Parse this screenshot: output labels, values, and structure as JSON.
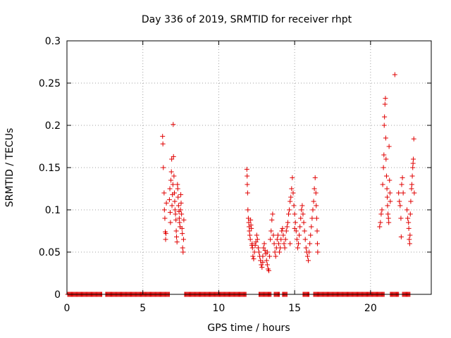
{
  "chart_data": {
    "type": "scatter",
    "title": "Day 336 of 2019, SRMTID for receiver rhpt",
    "xlabel": "GPS time / hours",
    "ylabel": "SRMTID / TECUs",
    "xlim": [
      0,
      24
    ],
    "ylim": [
      0,
      0.3
    ],
    "xticks": [
      0,
      5,
      10,
      15,
      20
    ],
    "yticks": [
      0,
      0.05,
      0.1,
      0.15,
      0.2,
      0.25,
      0.3
    ],
    "ytick_labels": [
      "0",
      "0.05",
      "0.1",
      "0.15",
      "0.2",
      "0.25",
      "0.3"
    ],
    "grid": true,
    "marker": "+",
    "color": "#e00000",
    "zero_intervals": [
      [
        0.05,
        2.3
      ],
      [
        2.55,
        6.75
      ],
      [
        7.75,
        11.8
      ],
      [
        12.65,
        13.45
      ],
      [
        13.65,
        14.0
      ],
      [
        14.2,
        14.5
      ],
      [
        15.55,
        15.95
      ],
      [
        16.25,
        20.9
      ],
      [
        21.3,
        21.85
      ],
      [
        22.1,
        22.6
      ]
    ],
    "series": [
      {
        "name": "SRMTID",
        "points": [
          [
            6.3,
            0.187
          ],
          [
            6.32,
            0.178
          ],
          [
            6.35,
            0.15
          ],
          [
            6.4,
            0.12
          ],
          [
            6.42,
            0.1
          ],
          [
            6.45,
            0.09
          ],
          [
            6.48,
            0.074
          ],
          [
            6.5,
            0.065
          ],
          [
            6.52,
            0.072
          ],
          [
            6.55,
            0.108
          ],
          [
            6.75,
            0.112
          ],
          [
            6.78,
            0.125
          ],
          [
            6.8,
            0.097
          ],
          [
            6.82,
            0.085
          ],
          [
            6.85,
            0.135
          ],
          [
            6.88,
            0.145
          ],
          [
            6.9,
            0.16
          ],
          [
            6.92,
            0.105
          ],
          [
            6.95,
            0.118
          ],
          [
            6.98,
            0.13
          ],
          [
            7.0,
            0.201
          ],
          [
            7.02,
            0.163
          ],
          [
            7.05,
            0.14
          ],
          [
            7.08,
            0.12
          ],
          [
            7.1,
            0.11
          ],
          [
            7.12,
            0.1
          ],
          [
            7.15,
            0.095
          ],
          [
            7.18,
            0.088
          ],
          [
            7.2,
            0.075
          ],
          [
            7.22,
            0.068
          ],
          [
            7.25,
            0.062
          ],
          [
            7.28,
            0.13
          ],
          [
            7.3,
            0.125
          ],
          [
            7.32,
            0.115
          ],
          [
            7.35,
            0.105
          ],
          [
            7.38,
            0.098
          ],
          [
            7.4,
            0.09
          ],
          [
            7.42,
            0.085
          ],
          [
            7.45,
            0.08
          ],
          [
            7.48,
            0.1
          ],
          [
            7.5,
            0.118
          ],
          [
            7.52,
            0.108
          ],
          [
            7.55,
            0.095
          ],
          [
            7.58,
            0.078
          ],
          [
            7.6,
            0.072
          ],
          [
            7.62,
            0.055
          ],
          [
            7.65,
            0.05
          ],
          [
            7.68,
            0.065
          ],
          [
            7.7,
            0.088
          ],
          [
            11.85,
            0.148
          ],
          [
            11.87,
            0.14
          ],
          [
            11.88,
            0.13
          ],
          [
            11.9,
            0.12
          ],
          [
            11.92,
            0.1
          ],
          [
            11.95,
            0.09
          ],
          [
            11.98,
            0.085
          ],
          [
            12.0,
            0.08
          ],
          [
            12.02,
            0.075
          ],
          [
            12.05,
            0.07
          ],
          [
            12.08,
            0.065
          ],
          [
            12.1,
            0.088
          ],
          [
            12.12,
            0.082
          ],
          [
            12.15,
            0.078
          ],
          [
            12.18,
            0.058
          ],
          [
            12.2,
            0.06
          ],
          [
            12.22,
            0.055
          ],
          [
            12.25,
            0.045
          ],
          [
            12.3,
            0.042
          ],
          [
            12.35,
            0.05
          ],
          [
            12.4,
            0.058
          ],
          [
            12.45,
            0.062
          ],
          [
            12.5,
            0.07
          ],
          [
            12.55,
            0.065
          ],
          [
            12.6,
            0.055
          ],
          [
            12.65,
            0.05
          ],
          [
            12.7,
            0.045
          ],
          [
            12.75,
            0.04
          ],
          [
            12.8,
            0.035
          ],
          [
            12.85,
            0.032
          ],
          [
            12.9,
            0.045
          ],
          [
            12.95,
            0.055
          ],
          [
            13.0,
            0.06
          ],
          [
            13.05,
            0.052
          ],
          [
            13.1,
            0.048
          ],
          [
            13.15,
            0.04
          ],
          [
            13.2,
            0.035
          ],
          [
            13.25,
            0.03
          ],
          [
            13.3,
            0.028
          ],
          [
            13.35,
            0.045
          ],
          [
            13.4,
            0.065
          ],
          [
            13.45,
            0.075
          ],
          [
            13.5,
            0.088
          ],
          [
            13.55,
            0.095
          ],
          [
            13.6,
            0.07
          ],
          [
            13.65,
            0.06
          ],
          [
            13.7,
            0.05
          ],
          [
            13.75,
            0.045
          ],
          [
            13.8,
            0.055
          ],
          [
            13.85,
            0.065
          ],
          [
            13.9,
            0.07
          ],
          [
            13.95,
            0.06
          ],
          [
            14.0,
            0.05
          ],
          [
            14.05,
            0.055
          ],
          [
            14.1,
            0.065
          ],
          [
            14.15,
            0.075
          ],
          [
            14.2,
            0.078
          ],
          [
            14.25,
            0.07
          ],
          [
            14.3,
            0.06
          ],
          [
            14.35,
            0.055
          ],
          [
            14.4,
            0.065
          ],
          [
            14.45,
            0.075
          ],
          [
            14.5,
            0.08
          ],
          [
            14.55,
            0.085
          ],
          [
            14.6,
            0.095
          ],
          [
            14.65,
            0.1
          ],
          [
            14.7,
            0.11
          ],
          [
            14.75,
            0.115
          ],
          [
            14.8,
            0.125
          ],
          [
            14.85,
            0.138
          ],
          [
            14.9,
            0.12
          ],
          [
            14.95,
            0.105
          ],
          [
            15.0,
            0.095
          ],
          [
            15.05,
            0.085
          ],
          [
            15.1,
            0.075
          ],
          [
            15.15,
            0.065
          ],
          [
            15.2,
            0.055
          ],
          [
            15.25,
            0.06
          ],
          [
            15.3,
            0.07
          ],
          [
            15.35,
            0.08
          ],
          [
            15.4,
            0.09
          ],
          [
            15.45,
            0.1
          ],
          [
            15.5,
            0.105
          ],
          [
            15.55,
            0.095
          ],
          [
            15.6,
            0.085
          ],
          [
            15.65,
            0.075
          ],
          [
            15.7,
            0.065
          ],
          [
            15.75,
            0.055
          ],
          [
            15.8,
            0.05
          ],
          [
            15.85,
            0.045
          ],
          [
            15.9,
            0.04
          ],
          [
            15.95,
            0.05
          ],
          [
            16.0,
            0.06
          ],
          [
            16.05,
            0.07
          ],
          [
            16.1,
            0.08
          ],
          [
            16.15,
            0.09
          ],
          [
            16.2,
            0.1
          ],
          [
            16.25,
            0.11
          ],
          [
            16.3,
            0.125
          ],
          [
            16.35,
            0.138
          ],
          [
            16.4,
            0.12
          ],
          [
            16.42,
            0.105
          ],
          [
            16.45,
            0.09
          ],
          [
            16.48,
            0.075
          ],
          [
            16.5,
            0.06
          ],
          [
            16.52,
            0.05
          ],
          [
            13.2,
            0.05
          ],
          [
            12.9,
            0.038
          ],
          [
            15.0,
            0.078
          ],
          [
            14.7,
            0.06
          ],
          [
            20.6,
            0.08
          ],
          [
            20.65,
            0.085
          ],
          [
            20.7,
            0.095
          ],
          [
            20.75,
            0.1
          ],
          [
            20.8,
            0.13
          ],
          [
            20.85,
            0.15
          ],
          [
            20.88,
            0.165
          ],
          [
            20.9,
            0.2
          ],
          [
            20.92,
            0.21
          ],
          [
            20.95,
            0.225
          ],
          [
            20.98,
            0.232
          ],
          [
            21.0,
            0.185
          ],
          [
            21.02,
            0.16
          ],
          [
            21.05,
            0.14
          ],
          [
            21.08,
            0.125
          ],
          [
            21.1,
            0.115
          ],
          [
            21.12,
            0.105
          ],
          [
            21.15,
            0.095
          ],
          [
            21.18,
            0.09
          ],
          [
            21.2,
            0.085
          ],
          [
            21.22,
            0.175
          ],
          [
            21.25,
            0.135
          ],
          [
            21.28,
            0.12
          ],
          [
            21.3,
            0.11
          ],
          [
            21.6,
            0.26
          ],
          [
            21.85,
            0.12
          ],
          [
            21.9,
            0.11
          ],
          [
            21.95,
            0.105
          ],
          [
            22.0,
            0.09
          ],
          [
            22.02,
            0.068
          ],
          [
            22.05,
            0.13
          ],
          [
            22.1,
            0.138
          ],
          [
            22.15,
            0.12
          ],
          [
            22.4,
            0.1
          ],
          [
            22.45,
            0.09
          ],
          [
            22.5,
            0.085
          ],
          [
            22.52,
            0.078
          ],
          [
            22.55,
            0.065
          ],
          [
            22.58,
            0.06
          ],
          [
            22.6,
            0.07
          ],
          [
            22.62,
            0.095
          ],
          [
            22.65,
            0.11
          ],
          [
            22.7,
            0.125
          ],
          [
            22.72,
            0.13
          ],
          [
            22.75,
            0.14
          ],
          [
            22.78,
            0.15
          ],
          [
            22.8,
            0.155
          ],
          [
            22.82,
            0.16
          ],
          [
            22.85,
            0.184
          ],
          [
            22.88,
            0.12
          ]
        ]
      }
    ]
  }
}
